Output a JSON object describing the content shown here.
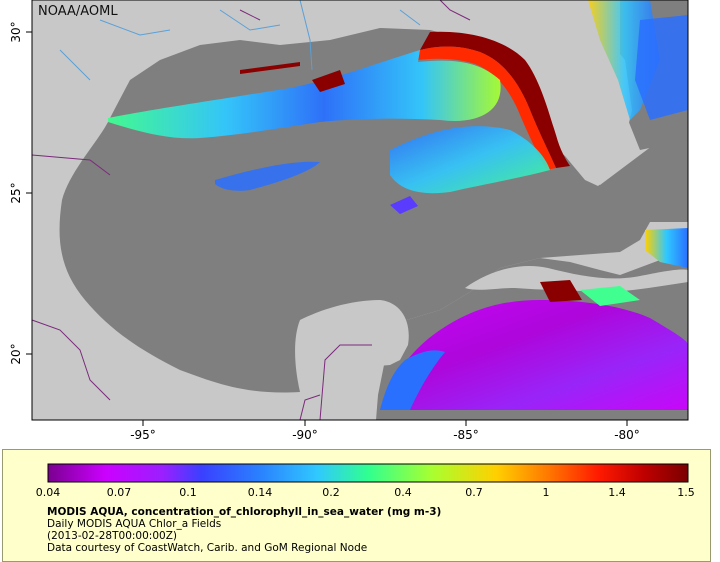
{
  "map": {
    "agency_label": "NOAA/AOML",
    "lon_ticks": [
      "-95°",
      "-90°",
      "-85°",
      "-80°"
    ],
    "lat_ticks": [
      "30°",
      "25°",
      "20°"
    ],
    "colors": {
      "land": "#c8c8c8",
      "ocean_no_data": "#7f7f7f",
      "border": "#7b2a7b",
      "river": "#5aa0d8",
      "frame": "#000000"
    }
  },
  "legend": {
    "ticks": [
      "0.04",
      "0.07",
      "0.1",
      "0.14",
      "0.2",
      "0.4",
      "0.7",
      "1",
      "1.4",
      "1.5"
    ],
    "colormap": [
      "#7a0090",
      "#cc00ff",
      "#5a3cff",
      "#2a70ff",
      "#30c8ff",
      "#40ff90",
      "#a8ff30",
      "#ffd000",
      "#ff7a00",
      "#ff1a00",
      "#a00000",
      "#7a0000"
    ],
    "title": "MODIS AQUA, concentration_of_chlorophyll_in_sea_water (mg m-3)",
    "subtitle": "Daily MODIS AQUA Chlor_a Fields",
    "date": "(2013-02-28T00:00:00Z)",
    "credit": "Data courtesy of CoastWatch, Carib. and GoM Regional Node"
  }
}
